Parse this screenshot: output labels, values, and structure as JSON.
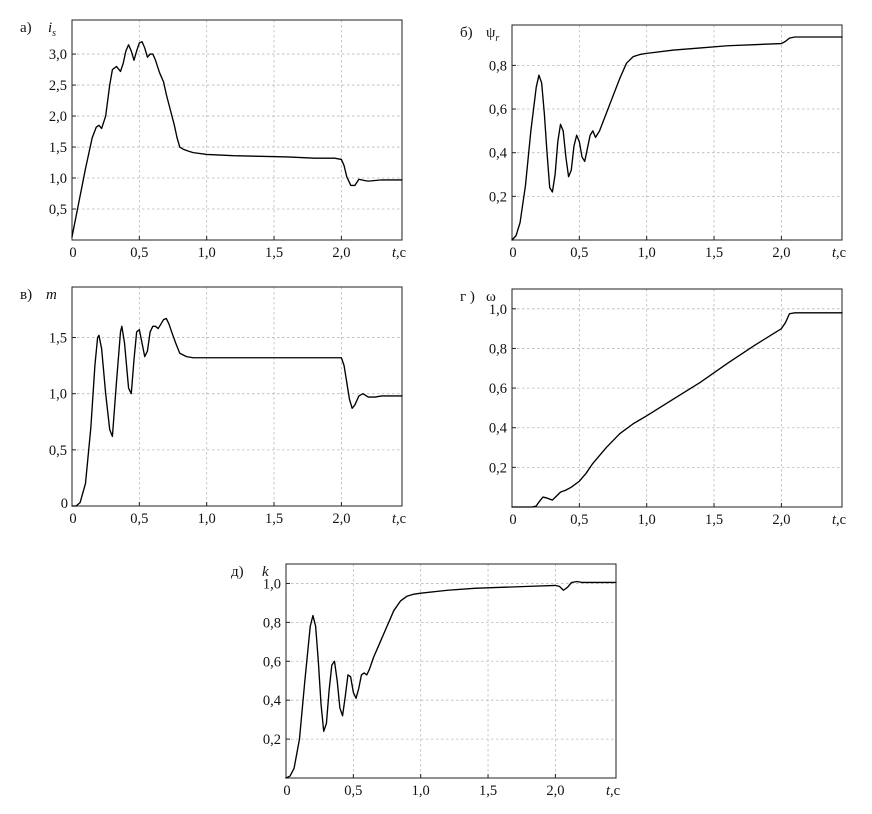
{
  "figure": {
    "background": "#ffffff",
    "line_color": "#000000",
    "grid_color": "#b9b9b9"
  },
  "chart_data": [
    {
      "id": "a",
      "type": "line",
      "panel_letter": "а)",
      "ylabel": "i",
      "ylabel_subscript": "s",
      "xlabel_var": "t",
      "xlabel_unit": ",с",
      "xlim": [
        0,
        2.45
      ],
      "ylim": [
        0,
        3.55
      ],
      "grid": true,
      "xticks": [
        0.5,
        1.0,
        1.5,
        2.0
      ],
      "xtick_labels": [
        "0,5",
        "1,0",
        "1,5",
        "2,0"
      ],
      "yticks": [
        0.5,
        1.0,
        1.5,
        2.0,
        2.5,
        3.0
      ],
      "ytick_labels": [
        "0,5",
        "1,0",
        "1,5",
        "2,0",
        "2,5",
        "3,0"
      ],
      "origin_label": "0",
      "series": [
        {
          "x": [
            0,
            0.05,
            0.1,
            0.15,
            0.18,
            0.2,
            0.22,
            0.25,
            0.28,
            0.3,
            0.33,
            0.36,
            0.38,
            0.4,
            0.42,
            0.44,
            0.46,
            0.48,
            0.5,
            0.52,
            0.54,
            0.56,
            0.58,
            0.6,
            0.62,
            0.65,
            0.68,
            0.7,
            0.73,
            0.76,
            0.78,
            0.8,
            0.83,
            0.87,
            0.9,
            1.0,
            1.2,
            1.4,
            1.6,
            1.8,
            1.95,
            2.0,
            2.02,
            2.04,
            2.07,
            2.1,
            2.13,
            2.17,
            2.2,
            2.25,
            2.3,
            2.45
          ],
          "y": [
            0.05,
            0.6,
            1.15,
            1.65,
            1.82,
            1.85,
            1.8,
            2.0,
            2.5,
            2.75,
            2.8,
            2.72,
            2.85,
            3.05,
            3.15,
            3.05,
            2.9,
            3.05,
            3.18,
            3.2,
            3.1,
            2.95,
            3.0,
            3.0,
            2.9,
            2.7,
            2.55,
            2.35,
            2.1,
            1.85,
            1.65,
            1.5,
            1.46,
            1.43,
            1.41,
            1.38,
            1.36,
            1.35,
            1.34,
            1.32,
            1.32,
            1.3,
            1.2,
            1.02,
            0.88,
            0.88,
            0.98,
            0.96,
            0.95,
            0.96,
            0.97,
            0.97
          ]
        }
      ]
    },
    {
      "id": "b",
      "type": "line",
      "panel_letter": "б)",
      "ylabel": "ψ",
      "ylabel_subscript": "r",
      "xlabel_var": "t",
      "xlabel_unit": ",с",
      "xlim": [
        0,
        2.45
      ],
      "ylim": [
        0,
        0.985
      ],
      "grid": true,
      "xticks": [
        0.5,
        1.0,
        1.5,
        2.0
      ],
      "xtick_labels": [
        "0,5",
        "1,0",
        "1,5",
        "2,0"
      ],
      "yticks": [
        0.2,
        0.4,
        0.6,
        0.8
      ],
      "ytick_labels": [
        "0,2",
        "0,4",
        "0,6",
        "0,8"
      ],
      "origin_label": "0",
      "series": [
        {
          "x": [
            0,
            0.03,
            0.06,
            0.1,
            0.14,
            0.18,
            0.2,
            0.22,
            0.24,
            0.26,
            0.28,
            0.3,
            0.32,
            0.34,
            0.36,
            0.38,
            0.4,
            0.42,
            0.44,
            0.46,
            0.48,
            0.5,
            0.52,
            0.54,
            0.56,
            0.58,
            0.6,
            0.62,
            0.65,
            0.7,
            0.75,
            0.8,
            0.85,
            0.9,
            0.95,
            1.0,
            1.2,
            1.4,
            1.6,
            1.8,
            2.0,
            2.03,
            2.06,
            2.1,
            2.15,
            2.2,
            2.45
          ],
          "y": [
            0.0,
            0.02,
            0.08,
            0.25,
            0.5,
            0.7,
            0.755,
            0.72,
            0.58,
            0.4,
            0.24,
            0.22,
            0.3,
            0.45,
            0.53,
            0.5,
            0.38,
            0.29,
            0.32,
            0.43,
            0.48,
            0.45,
            0.38,
            0.36,
            0.42,
            0.48,
            0.5,
            0.47,
            0.5,
            0.58,
            0.66,
            0.74,
            0.81,
            0.84,
            0.85,
            0.855,
            0.87,
            0.88,
            0.89,
            0.895,
            0.9,
            0.91,
            0.925,
            0.93,
            0.93,
            0.93,
            0.93
          ]
        }
      ]
    },
    {
      "id": "v",
      "type": "line",
      "panel_letter": "в)",
      "ylabel": "m",
      "ylabel_subscript": "",
      "xlabel_var": "t",
      "xlabel_unit": ",с",
      "xlim": [
        0,
        2.45
      ],
      "ylim": [
        0,
        1.95
      ],
      "grid": true,
      "xticks": [
        0.5,
        1.0,
        1.5,
        2.0
      ],
      "xtick_labels": [
        "0,5",
        "1,0",
        "1,5",
        "2,0"
      ],
      "yticks": [
        0.5,
        1.0,
        1.5
      ],
      "ytick_labels": [
        "0,5",
        "1,0",
        "1,5"
      ],
      "origin_label": "0",
      "y_origin_label": "0",
      "series": [
        {
          "x": [
            0,
            0.03,
            0.06,
            0.1,
            0.14,
            0.17,
            0.19,
            0.2,
            0.22,
            0.25,
            0.28,
            0.3,
            0.33,
            0.36,
            0.37,
            0.39,
            0.42,
            0.44,
            0.46,
            0.48,
            0.5,
            0.52,
            0.54,
            0.56,
            0.58,
            0.6,
            0.62,
            0.64,
            0.66,
            0.68,
            0.7,
            0.72,
            0.74,
            0.77,
            0.8,
            0.85,
            0.9,
            1.0,
            1.2,
            1.5,
            1.8,
            2.0,
            2.02,
            2.04,
            2.06,
            2.08,
            2.1,
            2.13,
            2.16,
            2.2,
            2.25,
            2.3,
            2.45
          ],
          "y": [
            0.0,
            0.0,
            0.03,
            0.2,
            0.7,
            1.25,
            1.5,
            1.52,
            1.4,
            1.0,
            0.68,
            0.62,
            1.1,
            1.55,
            1.6,
            1.45,
            1.05,
            1.0,
            1.3,
            1.55,
            1.57,
            1.45,
            1.33,
            1.38,
            1.55,
            1.6,
            1.6,
            1.58,
            1.62,
            1.66,
            1.67,
            1.62,
            1.55,
            1.45,
            1.36,
            1.33,
            1.32,
            1.32,
            1.32,
            1.32,
            1.32,
            1.32,
            1.25,
            1.1,
            0.95,
            0.87,
            0.9,
            0.98,
            1.0,
            0.97,
            0.97,
            0.98,
            0.98
          ]
        }
      ]
    },
    {
      "id": "g",
      "type": "line",
      "panel_letter": "г )",
      "ylabel": "ω",
      "ylabel_subscript": "",
      "xlabel_var": "t",
      "xlabel_unit": ",с",
      "xlim": [
        0,
        2.45
      ],
      "ylim": [
        0,
        1.1
      ],
      "grid": true,
      "xticks": [
        0.5,
        1.0,
        1.5,
        2.0
      ],
      "xtick_labels": [
        "0,5",
        "1,0",
        "1,5",
        "2,0"
      ],
      "yticks": [
        0.2,
        0.4,
        0.6,
        0.8,
        1.0
      ],
      "ytick_labels": [
        "0,2",
        "0,4",
        "0,6",
        "0,8",
        "1,0"
      ],
      "origin_label": "0",
      "series": [
        {
          "x": [
            0,
            0.05,
            0.1,
            0.15,
            0.18,
            0.2,
            0.23,
            0.26,
            0.3,
            0.33,
            0.36,
            0.4,
            0.44,
            0.5,
            0.55,
            0.6,
            0.7,
            0.8,
            0.9,
            1.0,
            1.2,
            1.4,
            1.6,
            1.8,
            2.0,
            2.03,
            2.06,
            2.1,
            2.2,
            2.3,
            2.45
          ],
          "y": [
            0.0,
            0.0,
            0.0,
            0.0,
            0.005,
            0.025,
            0.05,
            0.045,
            0.035,
            0.055,
            0.075,
            0.085,
            0.1,
            0.13,
            0.17,
            0.22,
            0.3,
            0.37,
            0.42,
            0.46,
            0.545,
            0.63,
            0.725,
            0.815,
            0.9,
            0.93,
            0.975,
            0.98,
            0.98,
            0.98,
            0.98
          ]
        }
      ]
    },
    {
      "id": "d",
      "type": "line",
      "panel_letter": "д)",
      "ylabel": "k",
      "ylabel_subscript": "",
      "xlabel_var": "t",
      "xlabel_unit": ",с",
      "xlim": [
        0,
        2.45
      ],
      "ylim": [
        0,
        1.1
      ],
      "grid": true,
      "xticks": [
        0.5,
        1.0,
        1.5,
        2.0
      ],
      "xtick_labels": [
        "0,5",
        "1,0",
        "1,5",
        "2,0"
      ],
      "yticks": [
        0.2,
        0.4,
        0.6,
        0.8,
        1.0
      ],
      "ytick_labels": [
        "0,2",
        "0,4",
        "0,6",
        "0,8",
        "1,0"
      ],
      "origin_label": "0",
      "series": [
        {
          "x": [
            0,
            0.03,
            0.06,
            0.1,
            0.14,
            0.18,
            0.2,
            0.22,
            0.24,
            0.26,
            0.28,
            0.3,
            0.32,
            0.34,
            0.36,
            0.38,
            0.4,
            0.42,
            0.44,
            0.46,
            0.48,
            0.5,
            0.52,
            0.54,
            0.56,
            0.58,
            0.6,
            0.62,
            0.65,
            0.7,
            0.75,
            0.8,
            0.85,
            0.9,
            0.95,
            1.0,
            1.2,
            1.4,
            1.6,
            1.8,
            2.0,
            2.03,
            2.06,
            2.09,
            2.12,
            2.16,
            2.2,
            2.45
          ],
          "y": [
            0.0,
            0.01,
            0.05,
            0.2,
            0.5,
            0.78,
            0.835,
            0.78,
            0.6,
            0.38,
            0.24,
            0.28,
            0.45,
            0.58,
            0.6,
            0.5,
            0.36,
            0.32,
            0.42,
            0.53,
            0.52,
            0.44,
            0.41,
            0.46,
            0.53,
            0.54,
            0.53,
            0.56,
            0.62,
            0.7,
            0.78,
            0.86,
            0.91,
            0.935,
            0.945,
            0.95,
            0.965,
            0.975,
            0.98,
            0.985,
            0.99,
            0.985,
            0.965,
            0.98,
            1.005,
            1.01,
            1.005,
            1.005
          ]
        }
      ]
    }
  ]
}
